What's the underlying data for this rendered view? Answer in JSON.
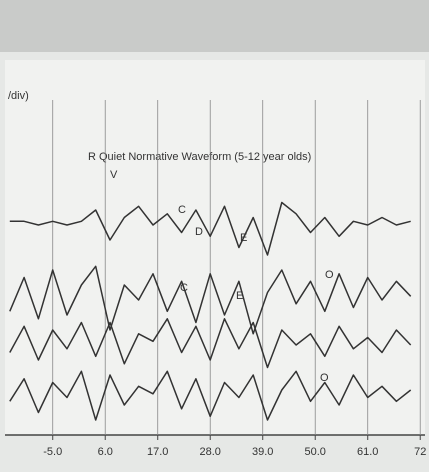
{
  "chart_data": {
    "type": "line",
    "title": "R Quiet Normative Waveform (5-12 year olds)",
    "axis_label": "/div)",
    "annotations": [
      "V",
      "C",
      "D",
      "E",
      "C",
      "E",
      "O",
      "O"
    ],
    "x": [
      -14,
      -11,
      -8,
      -5,
      -2,
      1,
      4,
      7,
      10,
      13,
      16,
      19,
      22,
      25,
      28,
      31,
      34,
      37,
      40,
      43,
      46,
      49,
      52,
      55,
      58,
      61,
      64,
      67,
      70
    ],
    "series": [
      {
        "color": "#333333",
        "values": [
          57,
          57,
          56,
          57,
          56,
          57,
          60,
          52,
          58,
          61,
          56,
          59,
          54,
          60,
          53,
          61,
          50,
          58,
          48,
          62,
          59,
          54,
          58,
          53,
          57,
          56,
          58,
          56,
          57
        ]
      },
      {
        "color": "#333333",
        "values": [
          33,
          42,
          31,
          44,
          32,
          40,
          45,
          28,
          40,
          36,
          43,
          33,
          41,
          30,
          43,
          32,
          41,
          27,
          38,
          44,
          35,
          41,
          33,
          43,
          34,
          42,
          36,
          41,
          37
        ]
      },
      {
        "color": "#333333",
        "values": [
          22,
          29,
          20,
          28,
          23,
          30,
          21,
          30,
          19,
          27,
          25,
          31,
          22,
          29,
          20,
          31,
          23,
          30,
          18,
          28,
          24,
          27,
          21,
          29,
          23,
          26,
          22,
          28,
          24
        ]
      },
      {
        "color": "#333333",
        "values": [
          9,
          15,
          6,
          14,
          10,
          17,
          4,
          16,
          8,
          13,
          11,
          17,
          7,
          15,
          5,
          14,
          10,
          16,
          4,
          12,
          17,
          9,
          14,
          8,
          16,
          10,
          13,
          9,
          12
        ]
      }
    ],
    "xlim": [
      -15,
      73
    ],
    "ylim": [
      0,
      100
    ],
    "xticks": [
      {
        "value": -5,
        "label": "-5.0"
      },
      {
        "value": 6,
        "label": "6.0"
      },
      {
        "value": 17,
        "label": "17.0"
      },
      {
        "value": 28,
        "label": "28.0"
      },
      {
        "value": 39,
        "label": "39.0"
      },
      {
        "value": 50,
        "label": "50.0"
      },
      {
        "value": 61,
        "label": "61.0"
      },
      72
    ],
    "grid": true
  }
}
